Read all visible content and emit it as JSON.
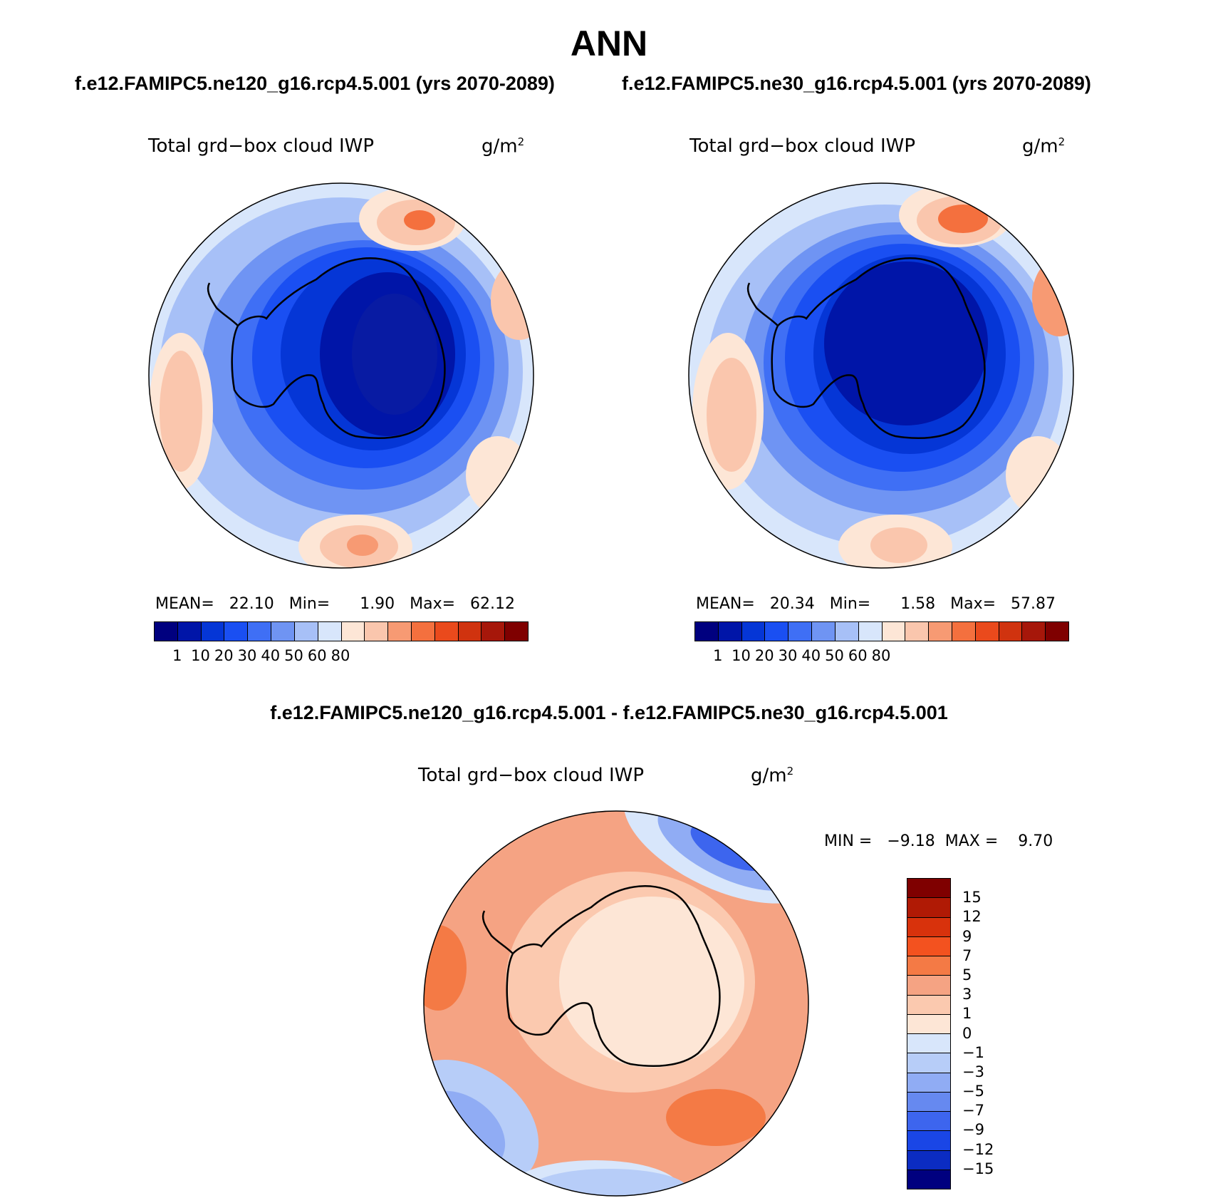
{
  "title": "ANN",
  "panels": [
    {
      "case": "f.e12.FAMIPC5.ne120_g16.rcp4.5.001 (yrs 2070-2089)",
      "variable": "Total grd−box cloud IWP",
      "units": "g/m",
      "units_exp": "2",
      "stats": "MEAN=   22.10   Min=      1.90   Max=   62.12"
    },
    {
      "case": "f.e12.FAMIPC5.ne30_g16.rcp4.5.001 (yrs 2070-2089)",
      "variable": "Total grd−box cloud IWP",
      "units": "g/m",
      "units_exp": "2",
      "stats": "MEAN=   20.34   Min=      1.58   Max=   57.87"
    }
  ],
  "abs_colorbar": {
    "levels": [
      "1",
      "10",
      "20",
      "30",
      "40",
      "50",
      "60",
      "80"
    ],
    "colors": [
      "#00007f",
      "#0015a8",
      "#0536d6",
      "#1a4ff2",
      "#3f6ff5",
      "#6f94f3",
      "#a7c0f7",
      "#d8e6fb",
      "#fde6d6",
      "#fac6ad",
      "#f79a73",
      "#f4703e",
      "#ea4a1c",
      "#d0330f",
      "#a6170a",
      "#7f0000"
    ]
  },
  "difference": {
    "title": "f.e12.FAMIPC5.ne120_g16.rcp4.5.001 - f.e12.FAMIPC5.ne30_g16.rcp4.5.001",
    "variable": "Total grd−box cloud IWP",
    "units": "g/m",
    "units_exp": "2",
    "stats": "MIN =   −9.18  MAX =    9.70",
    "levels": [
      "15",
      "12",
      "9",
      "7",
      "5",
      "3",
      "1",
      "0",
      "−1",
      "−3",
      "−5",
      "−7",
      "−9",
      "−12",
      "−15"
    ],
    "colors": [
      "#7f0000",
      "#b01a05",
      "#d8320c",
      "#f3521f",
      "#f47a45",
      "#f5a383",
      "#fbc9af",
      "#fde6d6",
      "#d8e6fb",
      "#b7cdf8",
      "#90acf4",
      "#6689f0",
      "#3d65ee",
      "#1a46e6",
      "#0b2cc2",
      "#00007f"
    ]
  }
}
